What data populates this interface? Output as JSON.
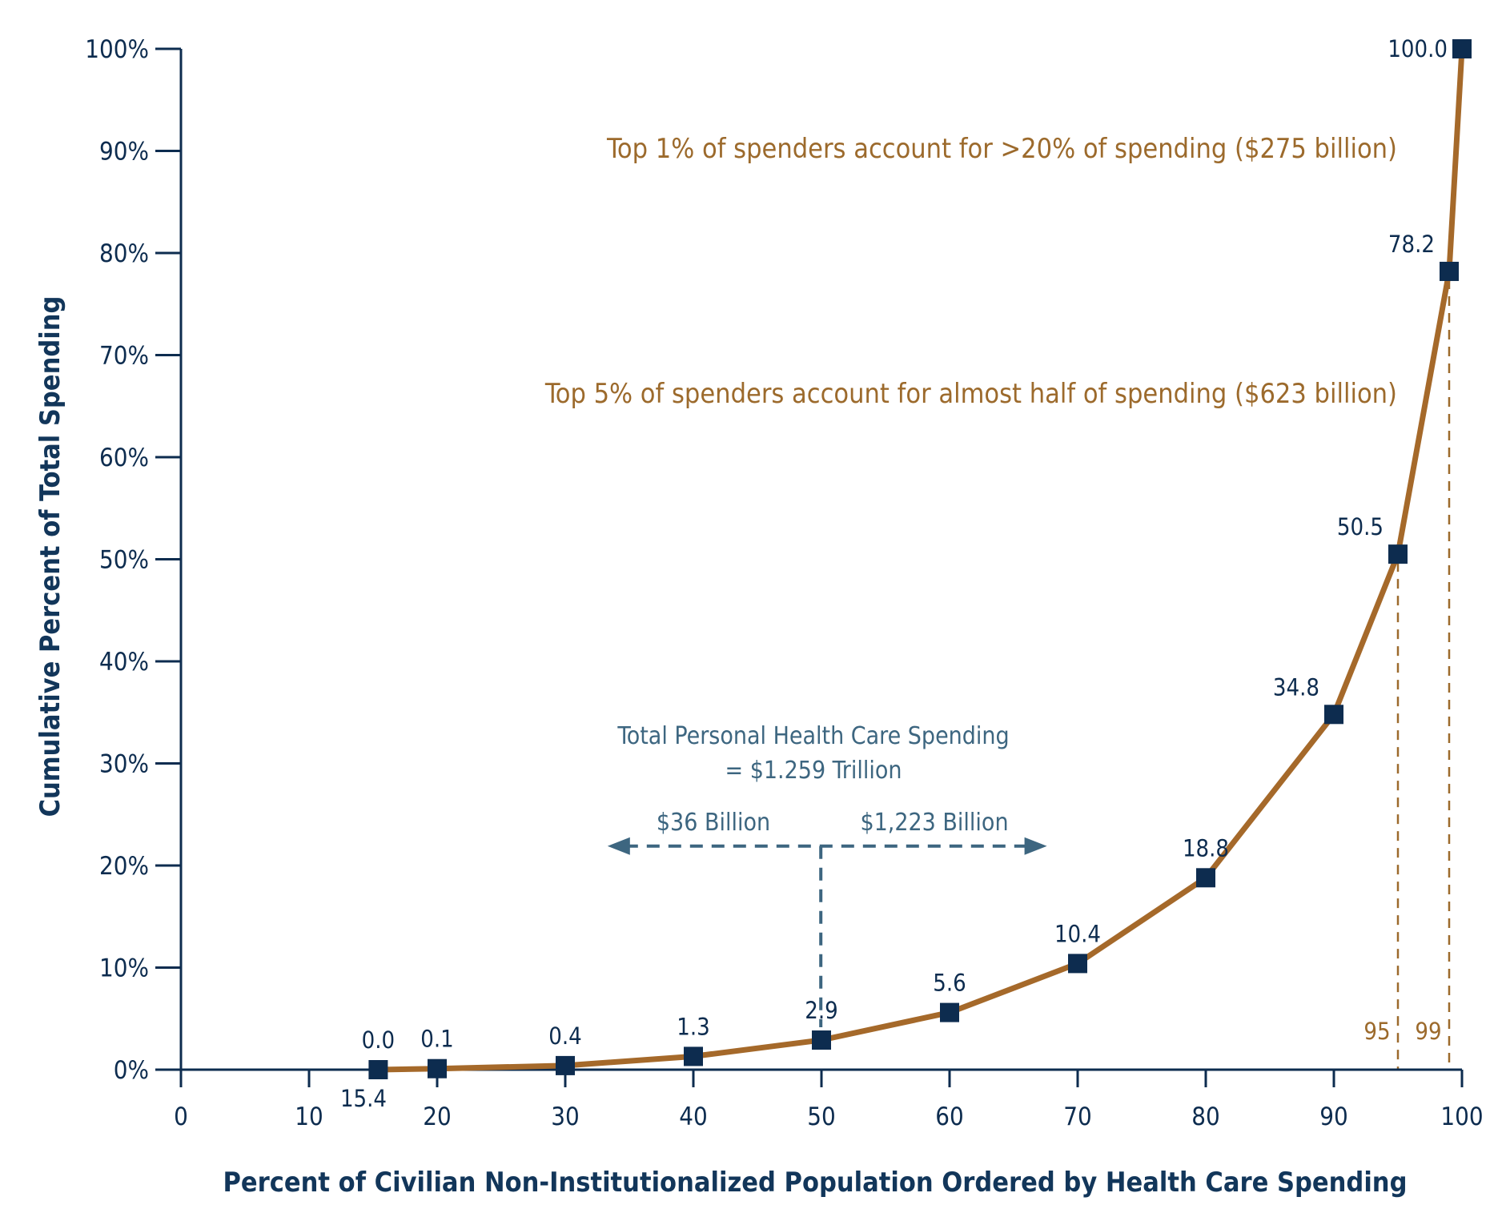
{
  "chart_data": {
    "type": "line",
    "xlabel": "Percent of Civilian Non-Institutionalized Population Ordered by Health Care Spending",
    "ylabel": "Cumulative Percent of Total Spending",
    "xlim": [
      0,
      100
    ],
    "ylim": [
      0,
      100
    ],
    "x_ticks": [
      "0",
      "10",
      "20",
      "30",
      "40",
      "50",
      "60",
      "70",
      "80",
      "90",
      "100"
    ],
    "y_ticks": [
      "0%",
      "10%",
      "20%",
      "30%",
      "40%",
      "50%",
      "60%",
      "70%",
      "80%",
      "90%",
      "100%"
    ],
    "series": [
      {
        "x": [
          15.4,
          20,
          30,
          40,
          50,
          60,
          70,
          80,
          90,
          95,
          99,
          100
        ],
        "y": [
          0.0,
          0.1,
          0.4,
          1.3,
          2.9,
          5.6,
          10.4,
          18.8,
          34.8,
          50.5,
          78.2,
          100.0
        ],
        "labels": [
          "0.0",
          "0.1",
          "0.4",
          "1.3",
          "2.9",
          "5.6",
          "10.4",
          "18.8",
          "34.8",
          "50.5",
          "78.2",
          "100.0"
        ],
        "color": "#a5692a",
        "marker_color": "#0d2c4f"
      }
    ],
    "first_point_x_label": "15.4",
    "annotations": {
      "top1": "Top 1% of spenders account for >20% of spending ($275 billion)",
      "top5": "Top 5% of spenders account for almost half of spending ($623 billion)",
      "total_line1": "Total Personal Health Care Spending",
      "total_line2": "= $1.259 Trillion",
      "left_amount": "$36 Billion",
      "right_amount": "$1,223 Billion",
      "marker_95": "95",
      "marker_99": "99"
    },
    "grid": false,
    "colors": {
      "axis": "#0d2c4f",
      "line": "#a5692a",
      "marker": "#0d2c4f",
      "annotation_orange": "#9c6a2c",
      "annotation_blue": "#3d6680"
    }
  }
}
